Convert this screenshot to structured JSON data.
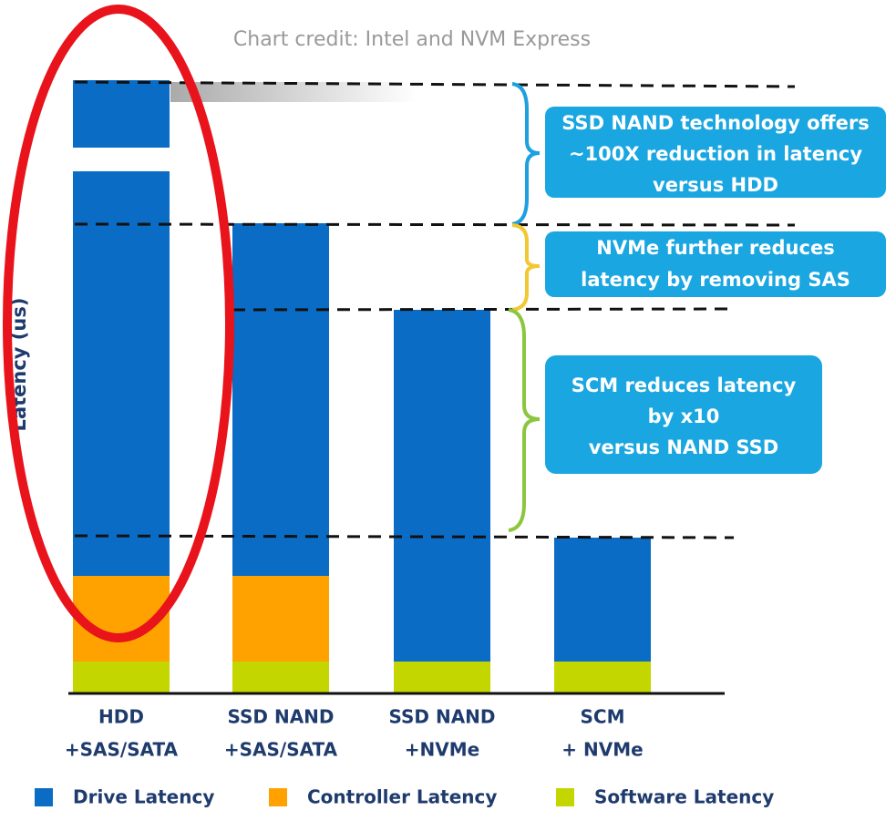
{
  "chart_data": {
    "type": "stacked_bar",
    "title": "Chart credit: Intel and NVM Express",
    "y_label": "Latency (us)",
    "categories": [
      [
        "HDD",
        "+SAS/SATA"
      ],
      [
        "SSD NAND",
        "+SAS/SATA"
      ],
      [
        "SSD NAND",
        "+NVMe"
      ],
      [
        "SCM",
        "+ NVMe"
      ]
    ],
    "series": [
      {
        "name": "Software Latency",
        "color": "#c3d600",
        "values": [
          34,
          34,
          34,
          34
        ]
      },
      {
        "name": "Controller Latency",
        "color": "#ffa200",
        "values": [
          94,
          94,
          0,
          0
        ]
      },
      {
        "name": "Drive Latency",
        "color": "#0a6cc4",
        "values": [
          544,
          387,
          386,
          136
        ]
      }
    ],
    "ylim": [
      0,
      672
    ],
    "annotations": [
      [
        "SSD NAND technology offers",
        "~100X reduction in latency",
        "versus HDD"
      ],
      [
        "NVMe further reduces",
        "latency by removing SAS"
      ],
      [
        "SCM reduces latency",
        "by x10",
        "versus NAND SSD"
      ]
    ]
  }
}
